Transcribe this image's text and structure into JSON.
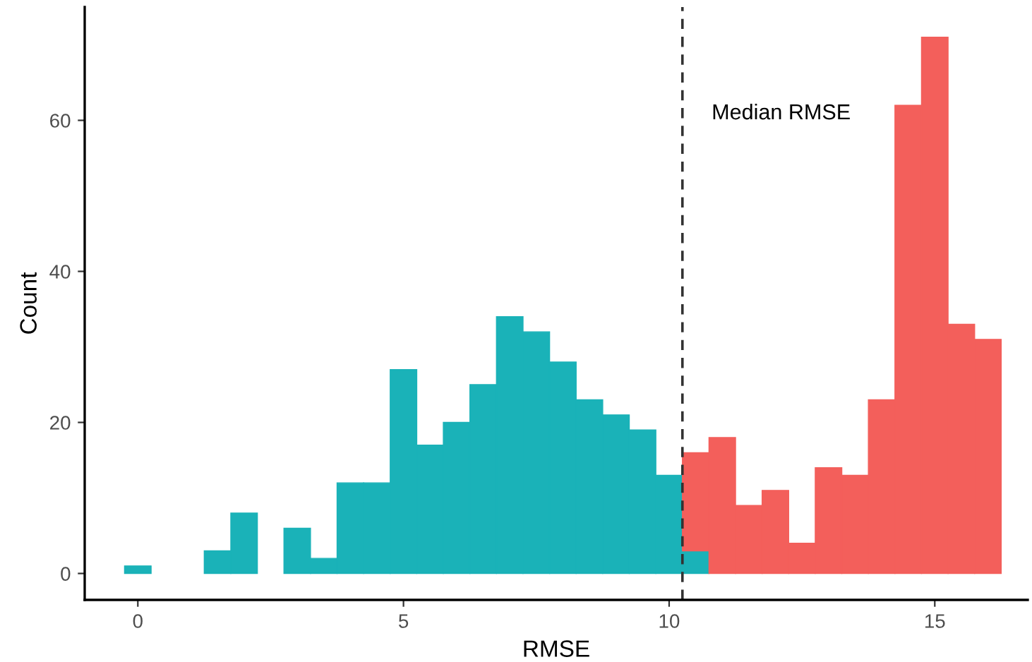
{
  "chart_data": {
    "type": "bar",
    "stacked": true,
    "xlabel": "RMSE",
    "ylabel": "Count",
    "x": [
      0,
      0.5,
      1,
      1.5,
      2,
      2.5,
      3,
      3.5,
      4,
      4.5,
      5,
      5.5,
      6,
      6.5,
      7,
      7.5,
      8,
      8.5,
      9,
      9.5,
      10,
      10.5,
      11,
      11.5,
      12,
      12.5,
      13,
      13.5,
      14,
      14.5,
      15,
      15.5,
      16
    ],
    "series": [
      {
        "color": "#1ab2b8",
        "values": [
          1,
          0,
          0,
          3,
          8,
          0,
          6,
          2,
          12,
          12,
          27,
          17,
          20,
          25,
          34,
          32,
          28,
          23,
          21,
          19,
          13,
          3,
          0,
          0,
          0,
          0,
          0,
          0,
          0,
          0,
          0,
          0,
          0
        ]
      },
      {
        "color": "#f35f5b",
        "values": [
          0,
          0,
          0,
          0,
          0,
          0,
          0,
          0,
          0,
          0,
          0,
          0,
          0,
          0,
          0,
          0,
          0,
          0,
          0,
          0,
          0,
          13,
          18,
          9,
          11,
          4,
          14,
          13,
          23,
          62,
          71,
          33,
          31
        ]
      }
    ],
    "xlim": [
      -1.0,
      16.75
    ],
    "ylim": [
      -3.5,
      75
    ],
    "xticks": [
      0,
      5,
      10,
      15
    ],
    "yticks": [
      0,
      20,
      40,
      60
    ],
    "ref_lines": [
      {
        "axis": "x",
        "value": 10.25,
        "label": "Median RMSE",
        "color": "#333333",
        "line_style": "dashed"
      }
    ],
    "grid": false,
    "legend": false
  }
}
